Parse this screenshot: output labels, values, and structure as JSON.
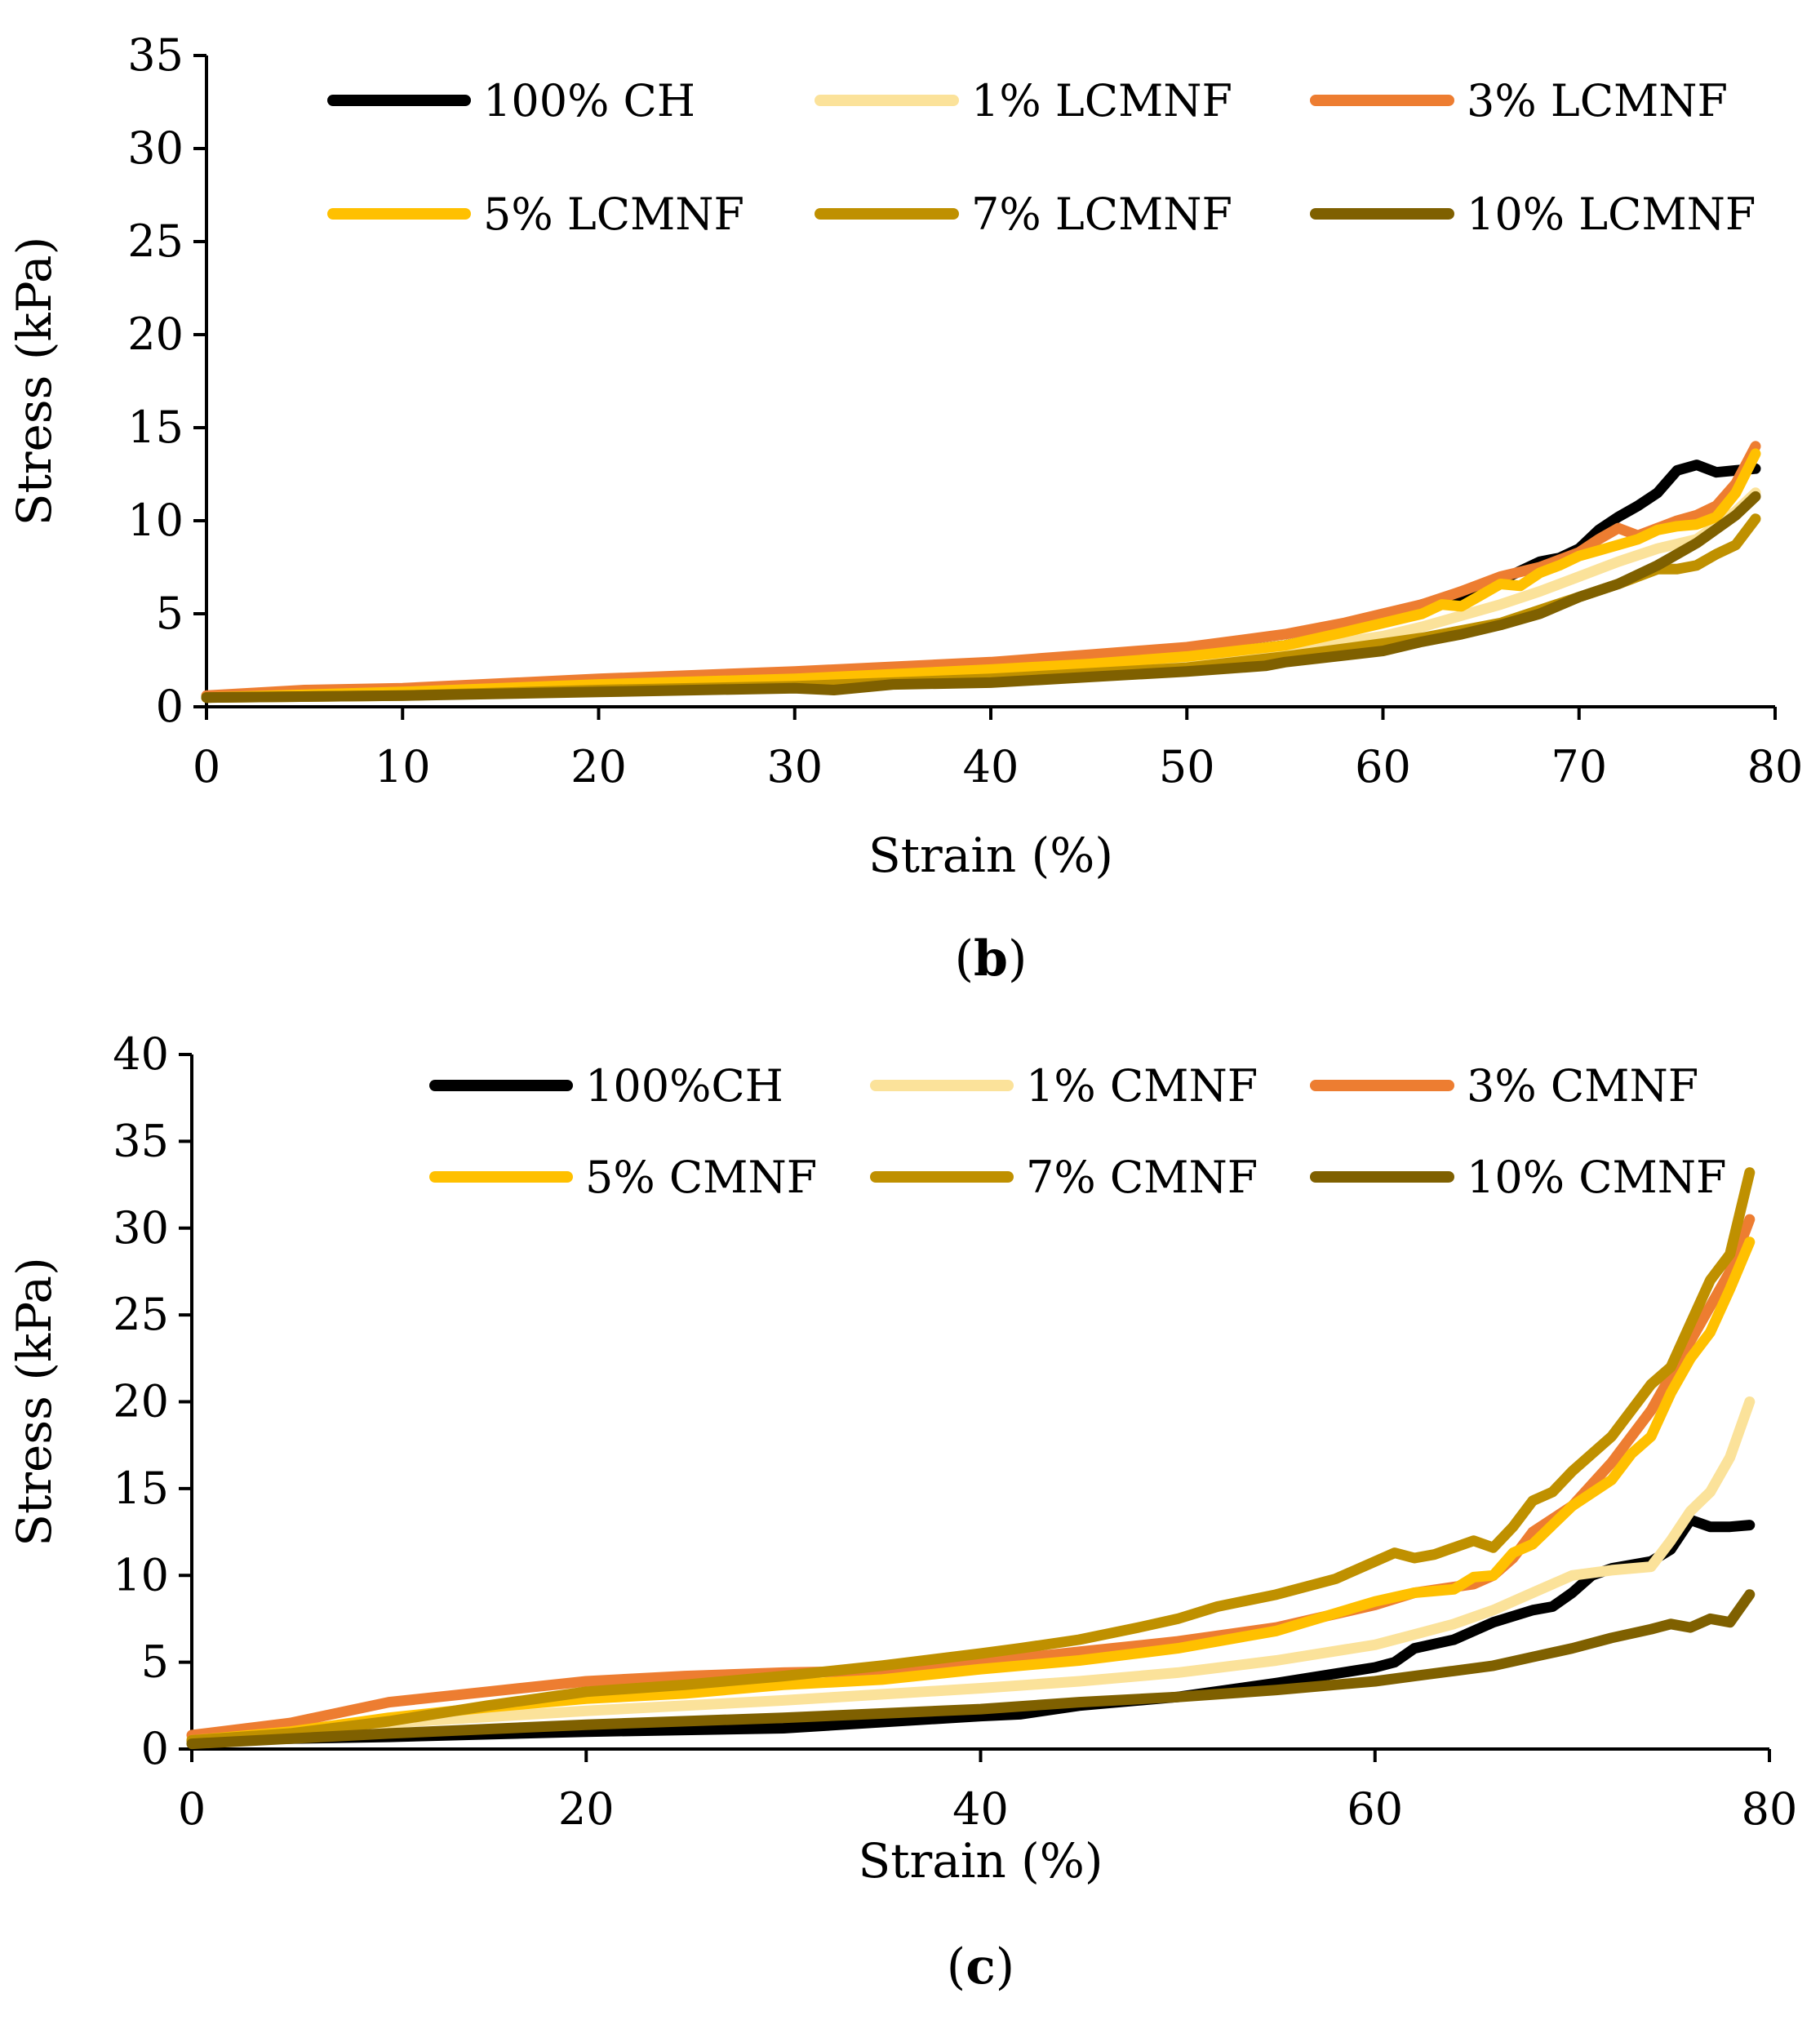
{
  "chart_data": [
    {
      "type": "line",
      "panel_label": "b",
      "title": "",
      "xlabel": "Strain (%)",
      "ylabel": "Stress (kPa)",
      "xlim": [
        0,
        80
      ],
      "ylim": [
        0,
        35
      ],
      "xticks": [
        0,
        10,
        20,
        30,
        40,
        50,
        60,
        70,
        80
      ],
      "yticks": [
        0,
        5,
        10,
        15,
        20,
        25,
        30,
        35
      ],
      "grid": false,
      "legend_position": "top",
      "series": [
        {
          "name": "100% CH",
          "color": "#000000",
          "x": [
            0,
            10,
            20,
            30,
            40,
            45,
            50,
            55,
            58,
            60,
            62,
            64,
            66,
            68,
            69,
            70,
            71,
            72,
            73,
            74,
            75,
            76,
            77,
            78,
            79
          ],
          "y": [
            0.5,
            0.7,
            1.0,
            1.3,
            1.8,
            2.2,
            2.7,
            3.3,
            4.0,
            4.6,
            5.5,
            6.0,
            6.8,
            7.8,
            8.0,
            8.5,
            9.5,
            10.2,
            10.8,
            11.5,
            12.7,
            13.0,
            12.6,
            12.7,
            12.8
          ]
        },
        {
          "name": "1% LCMNF",
          "color": "#FBE29A",
          "x": [
            0,
            10,
            20,
            30,
            40,
            45,
            50,
            55,
            60,
            62,
            64,
            66,
            68,
            70,
            72,
            74,
            76,
            78,
            79
          ],
          "y": [
            0.5,
            0.7,
            1.0,
            1.3,
            1.8,
            2.1,
            2.5,
            3.0,
            3.8,
            4.3,
            4.9,
            5.5,
            6.2,
            7.0,
            7.8,
            8.5,
            9.0,
            10.5,
            11.5
          ]
        },
        {
          "name": "3% LCMNF",
          "color": "#ED7D31",
          "x": [
            0,
            5,
            10,
            20,
            30,
            40,
            45,
            50,
            55,
            58,
            60,
            62,
            64,
            66,
            68,
            70,
            71,
            72,
            73,
            74,
            75,
            76,
            77,
            78,
            79
          ],
          "y": [
            0.6,
            0.9,
            1.0,
            1.5,
            1.9,
            2.4,
            2.8,
            3.2,
            3.9,
            4.5,
            5.0,
            5.5,
            6.2,
            7.0,
            7.5,
            8.3,
            9.0,
            9.6,
            9.2,
            9.6,
            10.0,
            10.3,
            10.8,
            12.0,
            14.0
          ]
        },
        {
          "name": "5% LCMNF",
          "color": "#FFC000",
          "x": [
            0,
            10,
            20,
            30,
            40,
            45,
            50,
            55,
            58,
            60,
            62,
            63,
            64,
            65,
            66,
            67,
            68,
            69,
            70,
            71,
            72,
            73,
            74,
            75,
            76,
            77,
            78,
            79
          ],
          "y": [
            0.5,
            0.8,
            1.2,
            1.5,
            2.0,
            2.3,
            2.7,
            3.3,
            4.0,
            4.5,
            5.0,
            5.5,
            5.4,
            6.0,
            6.6,
            6.5,
            7.2,
            7.6,
            8.1,
            8.4,
            8.7,
            9.0,
            9.5,
            9.7,
            9.8,
            10.2,
            11.5,
            13.6
          ]
        },
        {
          "name": "7% LCMNF",
          "color": "#BF9000",
          "x": [
            0,
            10,
            20,
            30,
            40,
            45,
            50,
            55,
            60,
            62,
            64,
            66,
            68,
            70,
            72,
            73,
            74,
            75,
            76,
            77,
            78,
            79
          ],
          "y": [
            0.5,
            0.6,
            0.9,
            1.1,
            1.5,
            1.8,
            2.1,
            2.7,
            3.4,
            3.7,
            4.1,
            4.5,
            5.2,
            5.9,
            6.6,
            7.0,
            7.4,
            7.4,
            7.6,
            8.2,
            8.7,
            10.1
          ]
        },
        {
          "name": "10% LCMNF",
          "color": "#7F6000",
          "x": [
            0,
            10,
            20,
            30,
            32,
            35,
            40,
            45,
            50,
            54,
            55,
            60,
            62,
            64,
            66,
            68,
            70,
            72,
            74,
            76,
            78,
            79
          ],
          "y": [
            0.5,
            0.6,
            0.8,
            1.0,
            0.9,
            1.2,
            1.3,
            1.6,
            1.9,
            2.2,
            2.4,
            3.0,
            3.5,
            3.9,
            4.4,
            5.0,
            5.9,
            6.6,
            7.6,
            8.8,
            10.3,
            11.3
          ]
        }
      ]
    },
    {
      "type": "line",
      "panel_label": "c",
      "title": "",
      "xlabel": "Strain (%)",
      "ylabel": "Stress (kPa)",
      "xlim": [
        0,
        80
      ],
      "ylim": [
        0,
        40
      ],
      "xticks": [
        0,
        20,
        40,
        60,
        80
      ],
      "yticks": [
        0,
        5,
        10,
        15,
        20,
        25,
        30,
        35,
        40
      ],
      "grid": false,
      "legend_position": "top",
      "series": [
        {
          "name": "100%CH",
          "color": "#000000",
          "x": [
            0,
            10,
            20,
            30,
            40,
            42,
            45,
            50,
            55,
            60,
            61,
            62,
            64,
            66,
            68,
            69,
            70,
            71,
            72,
            74,
            75,
            76,
            77,
            78,
            79
          ],
          "y": [
            0.5,
            0.7,
            1.0,
            1.2,
            1.9,
            2.0,
            2.5,
            3.0,
            3.8,
            4.7,
            5.0,
            5.8,
            6.3,
            7.3,
            8.0,
            8.2,
            9.0,
            10.0,
            10.4,
            10.8,
            11.5,
            13.2,
            12.8,
            12.8,
            12.9
          ]
        },
        {
          "name": "1% CMNF",
          "color": "#FBE29A",
          "x": [
            0,
            5,
            10,
            20,
            30,
            40,
            45,
            50,
            55,
            60,
            62,
            64,
            66,
            68,
            70,
            72,
            74,
            75,
            76,
            77,
            78,
            79
          ],
          "y": [
            0.6,
            1.0,
            1.5,
            2.2,
            2.8,
            3.5,
            3.9,
            4.4,
            5.1,
            6.0,
            6.6,
            7.2,
            8.0,
            9.0,
            10.0,
            10.3,
            10.5,
            12.0,
            13.7,
            14.8,
            16.8,
            20.0
          ]
        },
        {
          "name": "3% CMNF",
          "color": "#ED7D31",
          "x": [
            0,
            5,
            10,
            15,
            20,
            25,
            30,
            35,
            40,
            45,
            50,
            55,
            60,
            62,
            65,
            66,
            67,
            68,
            70,
            72,
            74,
            75,
            76,
            77,
            78,
            79
          ],
          "y": [
            0.8,
            1.5,
            2.7,
            3.3,
            3.9,
            4.2,
            4.4,
            4.5,
            5.0,
            5.6,
            6.2,
            7.0,
            8.3,
            9.0,
            9.5,
            10.0,
            11.0,
            12.5,
            14.0,
            16.5,
            19.5,
            21.5,
            23.5,
            25.5,
            27.5,
            30.5
          ]
        },
        {
          "name": "5% CMNF",
          "color": "#FFC000",
          "x": [
            0,
            5,
            10,
            15,
            20,
            25,
            30,
            35,
            40,
            45,
            50,
            55,
            60,
            62,
            64,
            65,
            66,
            67,
            68,
            70,
            72,
            73,
            74,
            75,
            76,
            77,
            78,
            79
          ],
          "y": [
            0.5,
            1.0,
            1.8,
            2.4,
            2.9,
            3.2,
            3.7,
            4.0,
            4.6,
            5.1,
            5.8,
            6.8,
            8.5,
            9.0,
            9.2,
            9.9,
            10.0,
            11.3,
            11.8,
            14.0,
            15.5,
            17.0,
            18.0,
            20.5,
            22.5,
            24.0,
            26.5,
            29.2
          ]
        },
        {
          "name": "7% CMNF",
          "color": "#BF9000",
          "x": [
            0,
            5,
            10,
            15,
            20,
            25,
            30,
            35,
            40,
            42,
            45,
            48,
            50,
            52,
            55,
            58,
            60,
            61,
            62,
            63,
            64,
            65,
            66,
            67,
            68,
            69,
            70,
            72,
            74,
            75,
            76,
            77,
            78,
            79
          ],
          "y": [
            0.5,
            0.9,
            1.6,
            2.5,
            3.3,
            3.7,
            4.2,
            4.8,
            5.5,
            5.8,
            6.3,
            7.0,
            7.5,
            8.2,
            8.9,
            9.8,
            10.8,
            11.3,
            11.0,
            11.2,
            11.6,
            12.0,
            11.6,
            12.8,
            14.3,
            14.8,
            16.0,
            18.0,
            21.0,
            22.0,
            24.5,
            27.0,
            28.5,
            33.2
          ]
        },
        {
          "name": "10% CMNF",
          "color": "#7F6000",
          "x": [
            0,
            10,
            20,
            30,
            40,
            45,
            50,
            55,
            60,
            62,
            64,
            66,
            68,
            70,
            72,
            74,
            75,
            76,
            77,
            78,
            79
          ],
          "y": [
            0.3,
            0.9,
            1.4,
            1.8,
            2.3,
            2.7,
            3.0,
            3.4,
            3.9,
            4.2,
            4.5,
            4.8,
            5.3,
            5.8,
            6.4,
            6.9,
            7.2,
            7.0,
            7.5,
            7.3,
            8.9
          ]
        }
      ]
    }
  ]
}
